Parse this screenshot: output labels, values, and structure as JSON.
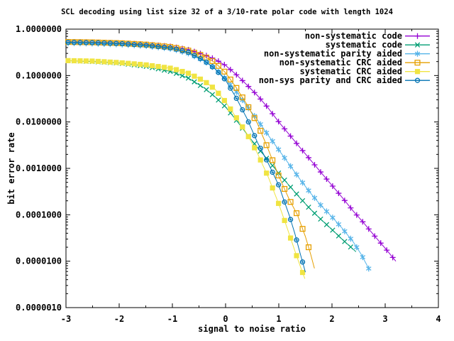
{
  "chart_data": {
    "type": "line",
    "title": "SCL decoding using list size 32 of a 3/10-rate polar code with length 1024",
    "xlabel": "signal to noise ratio",
    "ylabel": "bit error rate",
    "x_range": [
      -3,
      4
    ],
    "y_log_range": [
      1e-06,
      1
    ],
    "x_tick_labels": [
      "-3",
      "-2",
      "-1",
      "0",
      "1",
      "2",
      "3",
      "4"
    ],
    "x_major_ticks": [
      -3,
      -2,
      -1,
      0,
      1,
      2,
      3,
      4
    ],
    "x_minor_step": 0.5,
    "y_tick_labels": [
      "1.0000000",
      "0.1000000",
      "0.0100000",
      "0.0010000",
      "0.0001000",
      "0.0000100",
      "0.0000010"
    ],
    "y_tick_decades": [
      0,
      -1,
      -2,
      -3,
      -4,
      -5,
      -6
    ],
    "grid": "off",
    "legend_position": "top-right-inside",
    "marker_step_x": 0.113,
    "series": [
      {
        "name": "non-systematic code",
        "color": "#9400d3",
        "marker": "plus",
        "points": [
          [
            -3,
            0.53
          ],
          [
            -2.5,
            0.52
          ],
          [
            -2,
            0.5
          ],
          [
            -1.5,
            0.47
          ],
          [
            -1,
            0.42
          ],
          [
            -0.7,
            0.36
          ],
          [
            -0.4,
            0.28
          ],
          [
            -0.2,
            0.225
          ],
          [
            0,
            0.165
          ],
          [
            0.2,
            0.105
          ],
          [
            0.4,
            0.063
          ],
          [
            0.6,
            0.037
          ],
          [
            0.8,
            0.02
          ],
          [
            1.0,
            0.01
          ],
          [
            1.2,
            0.0053
          ],
          [
            1.4,
            0.0028
          ],
          [
            1.6,
            0.0015
          ],
          [
            1.8,
            0.0008
          ],
          [
            2.0,
            0.00043
          ],
          [
            2.2,
            0.00023
          ],
          [
            2.4,
            0.00012
          ],
          [
            2.6,
            6.6e-05
          ],
          [
            2.8,
            3.5e-05
          ],
          [
            3.0,
            1.9e-05
          ],
          [
            3.2,
            1e-05
          ]
        ]
      },
      {
        "name": "systematic code",
        "color": "#009e73",
        "marker": "cross",
        "points": [
          [
            -3,
            0.21
          ],
          [
            -2.5,
            0.2
          ],
          [
            -2,
            0.185
          ],
          [
            -1.5,
            0.158
          ],
          [
            -1,
            0.12
          ],
          [
            -0.7,
            0.088
          ],
          [
            -0.4,
            0.054
          ],
          [
            -0.2,
            0.035
          ],
          [
            0,
            0.021
          ],
          [
            0.2,
            0.011
          ],
          [
            0.4,
            0.0055
          ],
          [
            0.6,
            0.0028
          ],
          [
            0.8,
            0.0015
          ],
          [
            1.0,
            0.00078
          ],
          [
            1.2,
            0.00042
          ],
          [
            1.4,
            0.00023
          ],
          [
            1.6,
            0.00013
          ],
          [
            1.8,
            7.8e-05
          ],
          [
            2.0,
            4.8e-05
          ],
          [
            2.2,
            2.9e-05
          ],
          [
            2.45,
            1.6e-05
          ]
        ]
      },
      {
        "name": "non-systematic parity aided",
        "color": "#56b4e9",
        "marker": "asterisk",
        "points": [
          [
            -3,
            0.5
          ],
          [
            -2.5,
            0.49
          ],
          [
            -2,
            0.47
          ],
          [
            -1.5,
            0.435
          ],
          [
            -1,
            0.375
          ],
          [
            -0.7,
            0.3
          ],
          [
            -0.4,
            0.205
          ],
          [
            -0.2,
            0.14
          ],
          [
            0,
            0.085
          ],
          [
            0.2,
            0.045
          ],
          [
            0.4,
            0.022
          ],
          [
            0.6,
            0.011
          ],
          [
            0.8,
            0.0052
          ],
          [
            1.0,
            0.0025
          ],
          [
            1.2,
            0.0012
          ],
          [
            1.4,
            0.00058
          ],
          [
            1.6,
            0.00029
          ],
          [
            1.8,
            0.000155
          ],
          [
            2.0,
            9e-05
          ],
          [
            2.2,
            5e-05
          ],
          [
            2.4,
            2.6e-05
          ],
          [
            2.55,
            1.4e-05
          ],
          [
            2.7,
            6.6e-06
          ]
        ]
      },
      {
        "name": "non-systematic CRC aided",
        "color": "#e69f00",
        "marker": "open-square",
        "points": [
          [
            -3,
            0.53
          ],
          [
            -2.5,
            0.52
          ],
          [
            -2,
            0.5
          ],
          [
            -1.5,
            0.465
          ],
          [
            -1,
            0.41
          ],
          [
            -0.7,
            0.345
          ],
          [
            -0.4,
            0.26
          ],
          [
            -0.2,
            0.19
          ],
          [
            0,
            0.115
          ],
          [
            0.2,
            0.055
          ],
          [
            0.4,
            0.024
          ],
          [
            0.6,
            0.0092
          ],
          [
            0.8,
            0.0026
          ],
          [
            1.0,
            0.00068
          ],
          [
            1.2,
            0.00021
          ],
          [
            1.35,
            0.0001
          ],
          [
            1.5,
            3.4e-05
          ],
          [
            1.6,
            1.4e-05
          ],
          [
            1.67,
            7e-06
          ]
        ]
      },
      {
        "name": "systematic CRC aided",
        "color": "#f0e442",
        "marker": "filled-square",
        "points": [
          [
            -3,
            0.21
          ],
          [
            -2.5,
            0.205
          ],
          [
            -2,
            0.19
          ],
          [
            -1.5,
            0.17
          ],
          [
            -1,
            0.142
          ],
          [
            -0.7,
            0.112
          ],
          [
            -0.4,
            0.076
          ],
          [
            -0.2,
            0.051
          ],
          [
            0,
            0.027
          ],
          [
            0.2,
            0.0125
          ],
          [
            0.4,
            0.0056
          ],
          [
            0.6,
            0.0021
          ],
          [
            0.8,
            0.00066
          ],
          [
            1.0,
            0.00017
          ],
          [
            1.15,
            5.5e-05
          ],
          [
            1.3,
            1.7e-05
          ],
          [
            1.4,
            8e-06
          ],
          [
            1.49,
            4.2e-06
          ]
        ]
      },
      {
        "name": "non-sys parity and CRC aided",
        "color": "#0072b2",
        "marker": "circle-dash",
        "points": [
          [
            -3,
            0.52
          ],
          [
            -2.5,
            0.51
          ],
          [
            -2,
            0.49
          ],
          [
            -1.5,
            0.45
          ],
          [
            -1,
            0.39
          ],
          [
            -0.7,
            0.315
          ],
          [
            -0.4,
            0.21
          ],
          [
            -0.2,
            0.14
          ],
          [
            0,
            0.08
          ],
          [
            0.2,
            0.033
          ],
          [
            0.4,
            0.012
          ],
          [
            0.6,
            0.0036
          ],
          [
            0.8,
            0.0013
          ],
          [
            1.0,
            0.00043
          ],
          [
            1.1,
            0.0002
          ],
          [
            1.2,
            9.5e-05
          ],
          [
            1.3,
            4e-05
          ],
          [
            1.4,
            1.5e-05
          ],
          [
            1.5,
            5.8e-06
          ]
        ]
      }
    ]
  }
}
